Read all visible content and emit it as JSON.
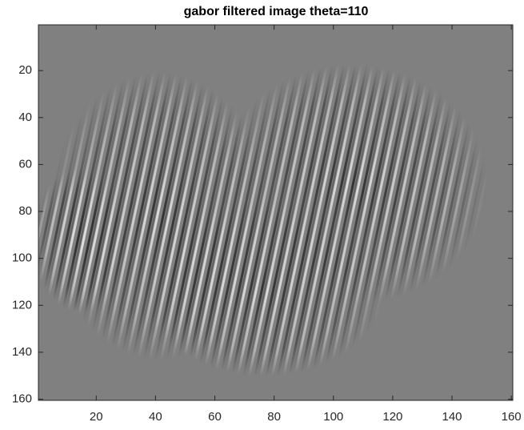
{
  "chart_data": {
    "type": "image",
    "title": "gabor filtered image theta=110",
    "xlim": [
      0.5,
      160.5
    ],
    "ylim": [
      0.5,
      160.5
    ],
    "y_reversed": true,
    "xticks": [
      20,
      40,
      60,
      80,
      100,
      120,
      140,
      160
    ],
    "yticks": [
      20,
      40,
      60,
      80,
      100,
      120,
      140,
      160
    ],
    "color": "#808080"
  }
}
